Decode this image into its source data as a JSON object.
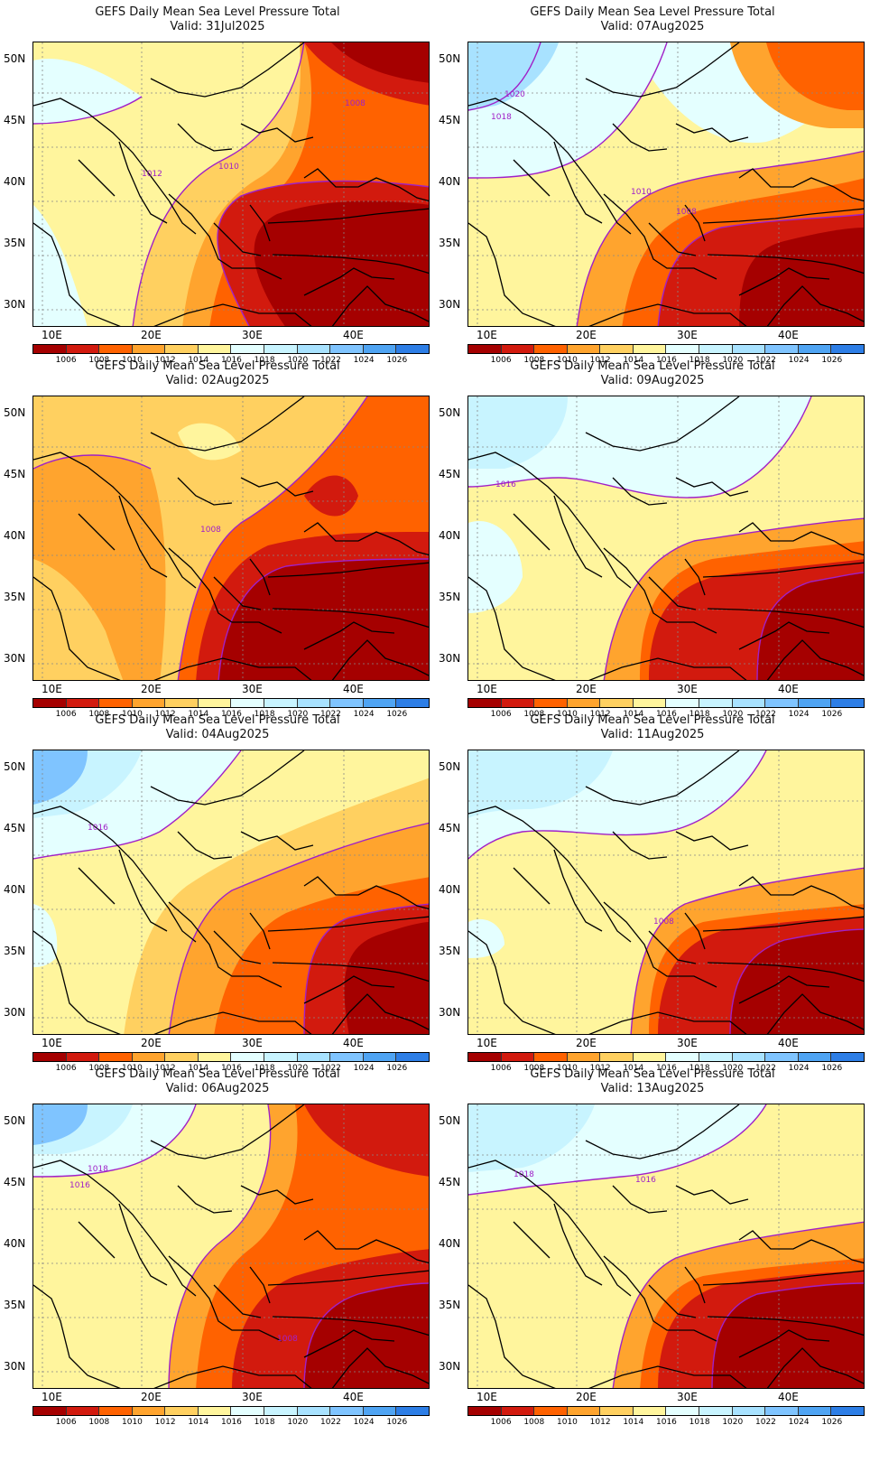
{
  "legend": {
    "colors": [
      "#a50000",
      "#d21a0e",
      "#ff6200",
      "#ffa42e",
      "#ffd060",
      "#fff59d",
      "#e4ffff",
      "#c8f4ff",
      "#a8e2ff",
      "#7fc4ff",
      "#4fa4f3",
      "#2d7ee6"
    ],
    "levels": [
      "1006",
      "1008",
      "1010",
      "1012",
      "1014",
      "1016",
      "1018",
      "1020",
      "1022",
      "1024",
      "1026"
    ]
  },
  "axes": {
    "lat_labels": [
      "50N",
      "45N",
      "40N",
      "35N",
      "30N"
    ],
    "lon_labels": [
      "10E",
      "20E",
      "30E",
      "40E"
    ]
  },
  "panels": [
    {
      "title": "GEFS Daily Mean Sea Level Pressure Total",
      "valid": "Valid: 31Jul2025",
      "variant": "a",
      "contour_labels": [
        "1012",
        "1010",
        "1008"
      ]
    },
    {
      "title": "GEFS Daily Mean Sea Level Pressure Total",
      "valid": "Valid: 07Aug2025",
      "variant": "b",
      "contour_labels": [
        "1020",
        "1018",
        "1010",
        "1008"
      ]
    },
    {
      "title": "GEFS Daily Mean Sea Level Pressure Total",
      "valid": "Valid: 02Aug2025",
      "variant": "c",
      "contour_labels": [
        "1008"
      ]
    },
    {
      "title": "GEFS Daily Mean Sea Level Pressure Total",
      "valid": "Valid: 09Aug2025",
      "variant": "d",
      "contour_labels": [
        "1016"
      ]
    },
    {
      "title": "GEFS Daily Mean Sea Level Pressure Total",
      "valid": "Valid: 04Aug2025",
      "variant": "e",
      "contour_labels": [
        "1016"
      ]
    },
    {
      "title": "GEFS Daily Mean Sea Level Pressure Total",
      "valid": "Valid: 11Aug2025",
      "variant": "f",
      "contour_labels": [
        "1008"
      ]
    },
    {
      "title": "GEFS Daily Mean Sea Level Pressure Total",
      "valid": "Valid: 06Aug2025",
      "variant": "g",
      "contour_labels": [
        "1018",
        "1016",
        "1008"
      ]
    },
    {
      "title": "GEFS Daily Mean Sea Level Pressure Total",
      "valid": "Valid: 13Aug2025",
      "variant": "h",
      "contour_labels": [
        "1018",
        "1016"
      ]
    }
  ]
}
